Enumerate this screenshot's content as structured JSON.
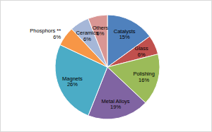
{
  "chart_data": {
    "type": "pie",
    "categories": [
      "Catalysts",
      "Glass",
      "Polishing",
      "Metal Alloys",
      "Magnets",
      "Phosphors **",
      "Ceramics",
      "Others"
    ],
    "values": [
      15,
      6,
      16,
      19,
      26,
      6,
      6,
      6
    ],
    "value_labels": [
      "15%",
      "6%",
      "16%",
      "19%",
      "26%",
      "6%",
      "6%",
      "6%"
    ],
    "colors": [
      "#4f81bd",
      "#c0504d",
      "#9bbb59",
      "#8064a2",
      "#4bacc6",
      "#f79646",
      "#a6b7d8",
      "#d99694"
    ],
    "data_labels": true
  }
}
